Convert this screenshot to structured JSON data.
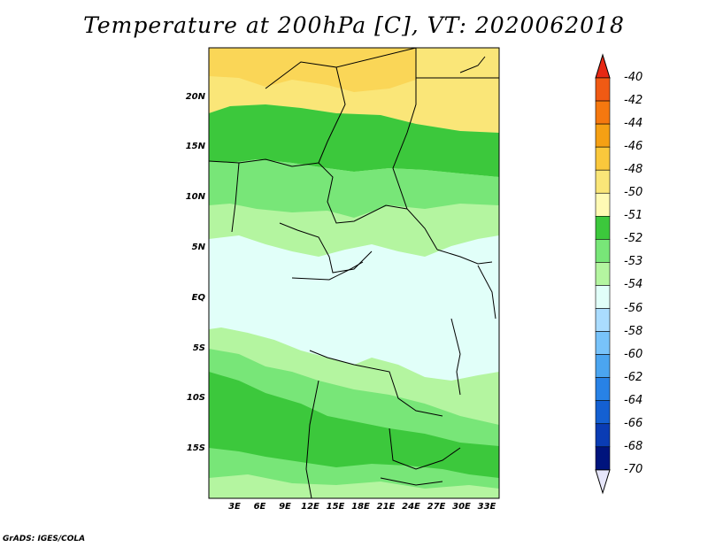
{
  "title": "Temperature at 200hPa [C], VT: 2020062018",
  "credit": "GrADS: IGES/COLA",
  "lat_labels": [
    "20N",
    "15N",
    "10N",
    "5N",
    "EQ",
    "5S",
    "10S",
    "15S"
  ],
  "lon_labels": [
    "3E",
    "6E",
    "9E",
    "12E",
    "15E",
    "18E",
    "21E",
    "24E",
    "27E",
    "30E",
    "33E"
  ],
  "colorbar": {
    "labels": [
      "-40",
      "-42",
      "-44",
      "-46",
      "-48",
      "-50",
      "-51",
      "-52",
      "-53",
      "-54",
      "-56",
      "-58",
      "-60",
      "-62",
      "-64",
      "-66",
      "-68",
      "-70"
    ],
    "colors": [
      "#f03c14",
      "#f05a14",
      "#f5780f",
      "#f5a014",
      "#fac83c",
      "#fae678",
      "#fffab4",
      "#3cc83c",
      "#78e678",
      "#b4f5a0",
      "#e1fff9",
      "#aadcff",
      "#78c3fa",
      "#4ba5f0",
      "#2882e6",
      "#1460d2",
      "#0a3cb4",
      "#00147d"
    ],
    "top_arrow_color": "#e62814",
    "bottom_arrow_color": "#e6e6fa"
  },
  "map_colors": {
    "temp_50_51": "#fae678",
    "temp_51_52": "#3cc83c",
    "temp_52_53": "#78e678",
    "temp_53_54": "#b4f5a0",
    "temp_54_56": "#e1fff9",
    "top_band": "#ffd278"
  }
}
